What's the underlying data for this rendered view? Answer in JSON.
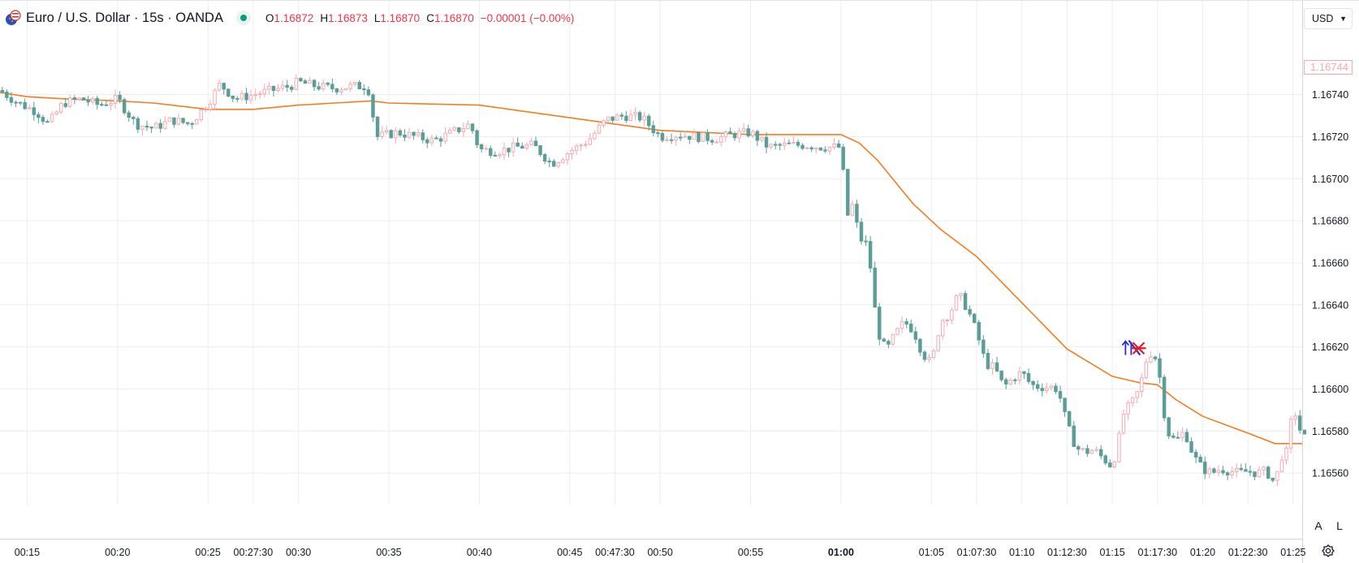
{
  "legend": {
    "title": "Euro / U.S. Dollar · 15s · OANDA",
    "open_label": "O",
    "open": "1.16872",
    "high_label": "H",
    "high": "1.16873",
    "low_label": "L",
    "low": "1.16870",
    "close_label": "C",
    "close": "1.16870",
    "change": "−0.00001 (−0.00%)"
  },
  "currency_selector": {
    "label": "USD"
  },
  "price_tag": "1.16744",
  "scale_buttons": {
    "auto": "A",
    "log": "L"
  },
  "icons": {
    "logo": "eurusd-flag-icon",
    "status": "market-open-dot-icon",
    "caret": "chevron-down-icon",
    "settings": "gear-icon"
  },
  "colors": {
    "up": "#f7a9b1",
    "down": "#5a9e97",
    "ma": "#f57c1f",
    "grid": "#e9eef2",
    "marker_blue": "#2b2bd6",
    "marker_red": "#e01e2a"
  },
  "chart_data": {
    "type": "candlestick",
    "symbol": "EURUSD",
    "interval": "15s",
    "ylim": [
      1.16545,
      1.16785
    ],
    "yticks": [
      "1.16740",
      "1.16720",
      "1.16700",
      "1.16680",
      "1.16660",
      "1.16640",
      "1.16620",
      "1.16600",
      "1.16580",
      "1.16560"
    ],
    "xlim": [
      "00:13:30",
      "01:25:30"
    ],
    "xticks": [
      {
        "t": "00:15:00",
        "label": "00:15"
      },
      {
        "t": "00:20:00",
        "label": "00:20"
      },
      {
        "t": "00:25:00",
        "label": "00:25"
      },
      {
        "t": "00:27:30",
        "label": "00:27:30"
      },
      {
        "t": "00:30:00",
        "label": "00:30"
      },
      {
        "t": "00:35:00",
        "label": "00:35"
      },
      {
        "t": "00:40:00",
        "label": "00:40"
      },
      {
        "t": "00:45:00",
        "label": "00:45"
      },
      {
        "t": "00:47:30",
        "label": "00:47:30"
      },
      {
        "t": "00:50:00",
        "label": "00:50"
      },
      {
        "t": "00:55:00",
        "label": "00:55"
      },
      {
        "t": "01:00:00",
        "label": "01:00",
        "bold": true
      },
      {
        "t": "01:05:00",
        "label": "01:05"
      },
      {
        "t": "01:07:30",
        "label": "01:07:30"
      },
      {
        "t": "01:10:00",
        "label": "01:10"
      },
      {
        "t": "01:12:30",
        "label": "01:12:30"
      },
      {
        "t": "01:15:00",
        "label": "01:15"
      },
      {
        "t": "01:17:30",
        "label": "01:17:30"
      },
      {
        "t": "01:20:00",
        "label": "01:20"
      },
      {
        "t": "01:22:30",
        "label": "01:22:30"
      },
      {
        "t": "01:25:00",
        "label": "01:25"
      }
    ],
    "close_path": [
      [
        "00:13:30",
        1.16742
      ],
      [
        "00:14:30",
        1.16736
      ],
      [
        "00:15:30",
        1.16732
      ],
      [
        "00:16:10",
        1.16726
      ],
      [
        "00:17:00",
        1.16736
      ],
      [
        "00:18:00",
        1.16738
      ],
      [
        "00:19:00",
        1.16735
      ],
      [
        "00:20:00",
        1.16738
      ],
      [
        "00:21:00",
        1.16726
      ],
      [
        "00:22:00",
        1.16724
      ],
      [
        "00:23:00",
        1.16728
      ],
      [
        "00:24:00",
        1.16726
      ],
      [
        "00:25:00",
        1.16736
      ],
      [
        "00:25:40",
        1.16745
      ],
      [
        "00:26:30",
        1.16738
      ],
      [
        "00:27:30",
        1.1674
      ],
      [
        "00:28:30",
        1.16742
      ],
      [
        "00:29:30",
        1.16744
      ],
      [
        "00:30:00",
        1.16746
      ],
      [
        "00:31:00",
        1.16744
      ],
      [
        "00:32:00",
        1.16743
      ],
      [
        "00:33:00",
        1.16744
      ],
      [
        "00:33:50",
        1.16744
      ],
      [
        "00:34:20",
        1.1672
      ],
      [
        "00:35:30",
        1.16722
      ],
      [
        "00:36:30",
        1.1672
      ],
      [
        "00:37:30",
        1.16718
      ],
      [
        "00:38:30",
        1.16722
      ],
      [
        "00:39:30",
        1.16726
      ],
      [
        "00:40:00",
        1.16714
      ],
      [
        "00:41:00",
        1.16713
      ],
      [
        "00:42:00",
        1.16715
      ],
      [
        "00:43:00",
        1.16716
      ],
      [
        "00:44:00",
        1.16707
      ],
      [
        "00:45:00",
        1.16713
      ],
      [
        "00:46:00",
        1.16718
      ],
      [
        "00:47:00",
        1.16728
      ],
      [
        "00:48:00",
        1.1673
      ],
      [
        "00:49:00",
        1.16729
      ],
      [
        "00:50:00",
        1.1672
      ],
      [
        "00:51:00",
        1.16721
      ],
      [
        "00:52:00",
        1.1672
      ],
      [
        "00:53:00",
        1.16719
      ],
      [
        "00:54:00",
        1.16721
      ],
      [
        "00:55:00",
        1.16722
      ],
      [
        "00:56:00",
        1.16715
      ],
      [
        "00:57:00",
        1.16716
      ],
      [
        "00:58:00",
        1.16716
      ],
      [
        "00:59:00",
        1.16715
      ],
      [
        "01:00:00",
        1.16715
      ],
      [
        "01:00:20",
        1.16682
      ],
      [
        "01:00:40",
        1.16688
      ],
      [
        "01:01:00",
        1.16672
      ],
      [
        "01:01:30",
        1.16668
      ],
      [
        "01:02:00",
        1.16628
      ],
      [
        "01:02:30",
        1.16618
      ],
      [
        "01:03:00",
        1.16626
      ],
      [
        "01:03:30",
        1.16632
      ],
      [
        "01:04:00",
        1.16628
      ],
      [
        "01:04:30",
        1.16617
      ],
      [
        "01:05:00",
        1.16612
      ],
      [
        "01:05:30",
        1.16632
      ],
      [
        "01:06:00",
        1.16636
      ],
      [
        "01:06:30",
        1.16645
      ],
      [
        "01:07:00",
        1.16638
      ],
      [
        "01:07:30",
        1.16627
      ],
      [
        "01:08:00",
        1.16612
      ],
      [
        "01:08:30",
        1.1661
      ],
      [
        "01:09:00",
        1.16601
      ],
      [
        "01:09:30",
        1.16605
      ],
      [
        "01:10:00",
        1.16608
      ],
      [
        "01:10:30",
        1.16602
      ],
      [
        "01:11:00",
        1.16601
      ],
      [
        "01:11:30",
        1.16601
      ],
      [
        "01:12:00",
        1.166
      ],
      [
        "01:12:30",
        1.16583
      ],
      [
        "01:13:00",
        1.16572
      ],
      [
        "01:13:30",
        1.1657
      ],
      [
        "01:14:00",
        1.16571
      ],
      [
        "01:14:30",
        1.16567
      ],
      [
        "01:15:00",
        1.16563
      ],
      [
        "01:15:20",
        1.16575
      ],
      [
        "01:15:40",
        1.1659
      ],
      [
        "01:16:00",
        1.16592
      ],
      [
        "01:16:30",
        1.166
      ],
      [
        "01:17:00",
        1.16618
      ],
      [
        "01:17:30",
        1.16614
      ],
      [
        "01:18:00",
        1.1658
      ],
      [
        "01:18:30",
        1.16575
      ],
      [
        "01:19:00",
        1.1658
      ],
      [
        "01:19:30",
        1.16568
      ],
      [
        "01:20:00",
        1.16562
      ],
      [
        "01:20:30",
        1.1656
      ],
      [
        "01:21:00",
        1.16562
      ],
      [
        "01:21:30",
        1.16561
      ],
      [
        "01:22:00",
        1.1656
      ],
      [
        "01:22:30",
        1.16561
      ],
      [
        "01:23:00",
        1.1656
      ],
      [
        "01:23:30",
        1.16561
      ],
      [
        "01:24:00",
        1.16555
      ],
      [
        "01:24:20",
        1.16568
      ],
      [
        "01:24:40",
        1.1657
      ],
      [
        "01:25:00",
        1.16592
      ],
      [
        "01:25:30",
        1.16577
      ]
    ],
    "moving_average": [
      [
        "00:13:30",
        1.16741
      ],
      [
        "00:15:00",
        1.16739
      ],
      [
        "00:17:00",
        1.16738
      ],
      [
        "00:20:00",
        1.16737
      ],
      [
        "00:22:00",
        1.16736
      ],
      [
        "00:25:00",
        1.16733
      ],
      [
        "00:27:30",
        1.16733
      ],
      [
        "00:30:00",
        1.16735
      ],
      [
        "00:32:00",
        1.16736
      ],
      [
        "00:34:00",
        1.16737
      ],
      [
        "00:35:00",
        1.16736
      ],
      [
        "00:40:00",
        1.16735
      ],
      [
        "00:45:00",
        1.16729
      ],
      [
        "00:47:30",
        1.16726
      ],
      [
        "00:50:00",
        1.16723
      ],
      [
        "00:55:00",
        1.16721
      ],
      [
        "01:00:00",
        1.16721
      ],
      [
        "01:01:00",
        1.16717
      ],
      [
        "01:02:00",
        1.16709
      ],
      [
        "01:04:00",
        1.16688
      ],
      [
        "01:05:30",
        1.16676
      ],
      [
        "01:07:30",
        1.16663
      ],
      [
        "01:10:00",
        1.16641
      ],
      [
        "01:12:30",
        1.16619
      ],
      [
        "01:15:00",
        1.16606
      ],
      [
        "01:16:30",
        1.16603
      ],
      [
        "01:17:30",
        1.16602
      ],
      [
        "01:18:30",
        1.16595
      ],
      [
        "01:20:00",
        1.16587
      ],
      [
        "01:22:30",
        1.16579
      ],
      [
        "01:24:00",
        1.16574
      ],
      [
        "01:25:30",
        1.16574
      ]
    ],
    "trade_markers": [
      {
        "t": "01:16:00",
        "price": 1.1662,
        "kind": "buy-arrow"
      },
      {
        "t": "01:16:30",
        "price": 1.16619,
        "kind": "cross"
      }
    ]
  }
}
